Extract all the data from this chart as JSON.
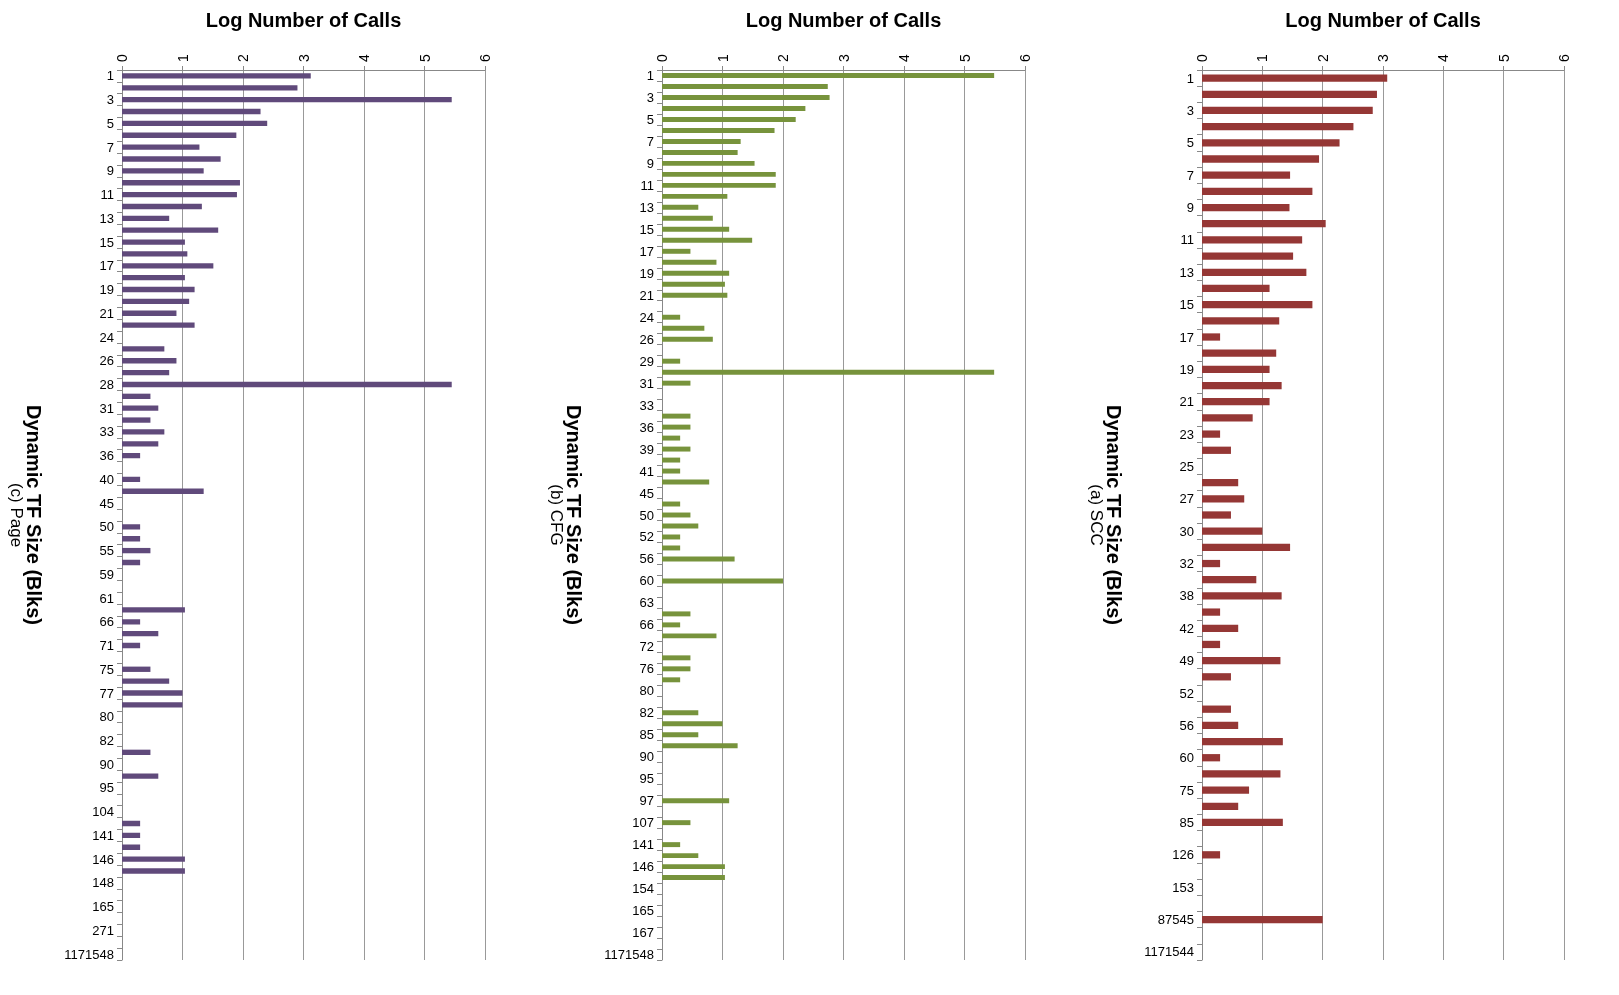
{
  "chart_data": [
    {
      "type": "bar",
      "orientation": "horizontal",
      "title": "(c) Page",
      "xlabel": "Log Number of Calls",
      "ylabel": "Dynamic TF Size (Blks)",
      "color": "#604a7b",
      "grid": "x",
      "xlim": [
        0,
        6
      ],
      "xticks": [
        0,
        1,
        2,
        3,
        4,
        5,
        6
      ],
      "categories": [
        "1",
        null,
        "3",
        null,
        "5",
        null,
        "7",
        null,
        "9",
        null,
        "11",
        null,
        "13",
        null,
        "15",
        null,
        "17",
        null,
        "19",
        null,
        "21",
        null,
        "24",
        null,
        "26",
        null,
        "28",
        null,
        "31",
        null,
        "33",
        null,
        "36",
        null,
        "40",
        null,
        "45",
        null,
        "50",
        null,
        "55",
        null,
        "59",
        null,
        "61",
        null,
        "66",
        null,
        "71",
        null,
        "75",
        null,
        "77",
        null,
        "80",
        null,
        "82",
        null,
        "90",
        null,
        "95",
        null,
        "104",
        null,
        "141",
        null,
        "146",
        null,
        "148",
        null,
        "165",
        null,
        "271",
        null,
        "1171548"
      ],
      "values": [
        3.12,
        2.9,
        5.45,
        2.29,
        2.4,
        1.89,
        1.28,
        1.63,
        1.35,
        1.95,
        1.9,
        1.32,
        0.78,
        1.59,
        1.04,
        1.08,
        1.51,
        1.04,
        1.2,
        1.11,
        0.9,
        1.2,
        null,
        0.7,
        0.9,
        0.78,
        5.45,
        0.47,
        0.6,
        0.47,
        0.7,
        0.6,
        0.3,
        null,
        0.3,
        1.35,
        null,
        null,
        0.3,
        0.3,
        0.47,
        0.3,
        null,
        null,
        null,
        1.04,
        0.3,
        0.6,
        0.3,
        null,
        0.47,
        0.78,
        1.0,
        1.0,
        null,
        null,
        null,
        0.47,
        null,
        0.6,
        null,
        null,
        null,
        0.3,
        0.3,
        0.3,
        1.04,
        1.04,
        null,
        null,
        null,
        null,
        null,
        null,
        null
      ]
    },
    {
      "type": "bar",
      "orientation": "horizontal",
      "title": "(b) CFG",
      "xlabel": "Log Number of Calls",
      "ylabel": "Dynamic TF Size (Blks)",
      "color": "#77933c",
      "grid": "x",
      "xlim": [
        0,
        6
      ],
      "xticks": [
        0,
        1,
        2,
        3,
        4,
        5,
        6
      ],
      "categories": [
        "1",
        null,
        "3",
        null,
        "5",
        null,
        "7",
        null,
        "9",
        null,
        "11",
        null,
        "13",
        null,
        "15",
        null,
        "17",
        null,
        "19",
        null,
        "21",
        null,
        "24",
        null,
        "26",
        null,
        "29",
        null,
        "31",
        null,
        "33",
        null,
        "36",
        null,
        "39",
        null,
        "41",
        null,
        "45",
        null,
        "50",
        null,
        "52",
        null,
        "56",
        null,
        "60",
        null,
        "63",
        null,
        "66",
        null,
        "72",
        null,
        "76",
        null,
        "80",
        null,
        "82",
        null,
        "85",
        null,
        "90",
        null,
        "95",
        null,
        "97",
        null,
        "107",
        null,
        "141",
        null,
        "146",
        null,
        "154",
        null,
        "165",
        null,
        "167",
        null,
        "1171548"
      ],
      "values": [
        5.49,
        2.74,
        2.77,
        2.37,
        2.21,
        1.86,
        1.3,
        1.25,
        1.53,
        1.88,
        1.88,
        1.08,
        0.6,
        0.84,
        1.11,
        1.49,
        0.47,
        0.9,
        1.11,
        1.04,
        1.08,
        null,
        0.3,
        0.7,
        0.84,
        null,
        0.3,
        5.49,
        0.47,
        null,
        null,
        0.47,
        0.47,
        0.3,
        0.47,
        0.3,
        0.3,
        0.78,
        null,
        0.3,
        0.47,
        0.6,
        0.3,
        0.3,
        1.2,
        null,
        2.0,
        null,
        null,
        0.47,
        0.3,
        0.9,
        null,
        0.47,
        0.47,
        0.3,
        null,
        null,
        0.6,
        1.0,
        0.6,
        1.25,
        null,
        null,
        null,
        null,
        1.11,
        null,
        0.47,
        null,
        0.3,
        0.6,
        1.04,
        1.04,
        null,
        null,
        null,
        null,
        null,
        null,
        null
      ]
    },
    {
      "type": "bar",
      "orientation": "horizontal",
      "title": "(a) SCC",
      "xlabel": "Log Number of Calls",
      "ylabel": "Dynamic TF Size (Blks)",
      "color": "#953735",
      "grid": "x",
      "xlim": [
        0,
        6
      ],
      "xticks": [
        0,
        1,
        2,
        3,
        4,
        5,
        6
      ],
      "categories": [
        "1",
        null,
        "3",
        null,
        "5",
        null,
        "7",
        null,
        "9",
        null,
        "11",
        null,
        "13",
        null,
        "15",
        null,
        "17",
        null,
        "19",
        null,
        "21",
        null,
        "23",
        null,
        "25",
        null,
        "27",
        null,
        "30",
        null,
        "32",
        null,
        "38",
        null,
        "42",
        null,
        "49",
        null,
        "52",
        null,
        "56",
        null,
        "60",
        null,
        "75",
        null,
        "85",
        null,
        "126",
        null,
        "153",
        null,
        "87545",
        null,
        "1171544"
      ],
      "values": [
        3.07,
        2.9,
        2.83,
        2.51,
        2.28,
        1.94,
        1.46,
        1.83,
        1.45,
        2.05,
        1.66,
        1.51,
        1.73,
        1.12,
        1.83,
        1.28,
        0.3,
        1.23,
        1.12,
        1.32,
        1.12,
        0.84,
        0.3,
        0.48,
        null,
        0.6,
        0.7,
        0.48,
        1.0,
        1.46,
        0.3,
        0.9,
        1.32,
        0.3,
        0.6,
        0.3,
        1.3,
        0.48,
        null,
        0.48,
        0.6,
        1.34,
        0.3,
        1.3,
        0.78,
        0.6,
        1.34,
        null,
        0.3,
        null,
        null,
        null,
        2.0,
        null,
        null
      ]
    }
  ]
}
